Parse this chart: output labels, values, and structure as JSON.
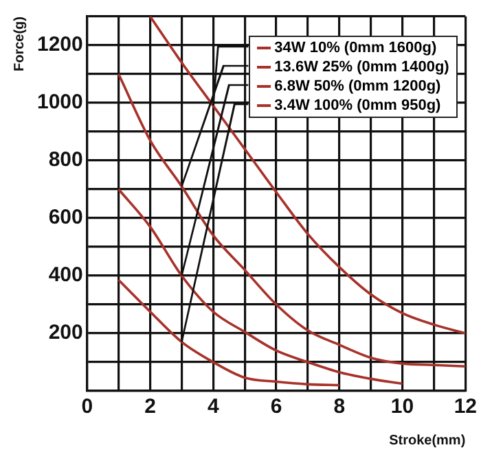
{
  "chart_data": {
    "type": "line",
    "xlabel": "Stroke(mm)",
    "ylabel": "Force(g)",
    "xlim": [
      0,
      12
    ],
    "ylim": [
      0,
      1300
    ],
    "xticks": [
      0,
      {
        "value": 1,
        "label": null
      },
      2,
      {
        "value": 3,
        "label": null
      },
      4,
      {
        "value": 5,
        "label": null
      },
      6,
      {
        "value": 7,
        "label": null
      },
      8,
      {
        "value": 9,
        "label": null
      },
      10,
      {
        "value": 11,
        "label": null
      },
      12
    ],
    "yticks": [
      {
        "value": 0,
        "label": null
      },
      {
        "value": 100,
        "label": null
      },
      200,
      {
        "value": 300,
        "label": null
      },
      400,
      {
        "value": 500,
        "label": null
      },
      600,
      {
        "value": 700,
        "label": null
      },
      800,
      {
        "value": 900,
        "label": null
      },
      1000,
      {
        "value": 1100,
        "label": null
      },
      1200,
      {
        "value": 1300,
        "label": null
      }
    ],
    "grid": true,
    "legend": "top right",
    "marker": "none",
    "series": [
      {
        "name": "34W 10% (0mm 1600g)",
        "color": "#a8322a",
        "x": [
          2,
          3,
          4,
          5,
          6,
          7,
          8,
          9,
          10,
          11,
          12
        ],
        "values": [
          1300,
          1140,
          990,
          840,
          690,
          545,
          430,
          335,
          270,
          230,
          200
        ]
      },
      {
        "name": "13.6W 25% (0mm 1400g)",
        "color": "#a8322a",
        "x": [
          1,
          2,
          3,
          4,
          5,
          6,
          7,
          8,
          9,
          10,
          11,
          12
        ],
        "values": [
          1100,
          870,
          710,
          540,
          420,
          300,
          210,
          160,
          115,
          95,
          90,
          85
        ]
      },
      {
        "name": "6.8W 50% (0mm 1200g)",
        "color": "#a8322a",
        "x": [
          1,
          2,
          3,
          4,
          5,
          6,
          7,
          8,
          9,
          10
        ],
        "values": [
          700,
          570,
          400,
          275,
          205,
          140,
          100,
          65,
          42,
          25
        ]
      },
      {
        "name": "3.4W 100% (0mm 950g)",
        "color": "#a8322a",
        "x": [
          1,
          2,
          3,
          4,
          5,
          6,
          7,
          8
        ],
        "values": [
          385,
          275,
          170,
          100,
          46,
          32,
          23,
          20
        ]
      }
    ]
  }
}
